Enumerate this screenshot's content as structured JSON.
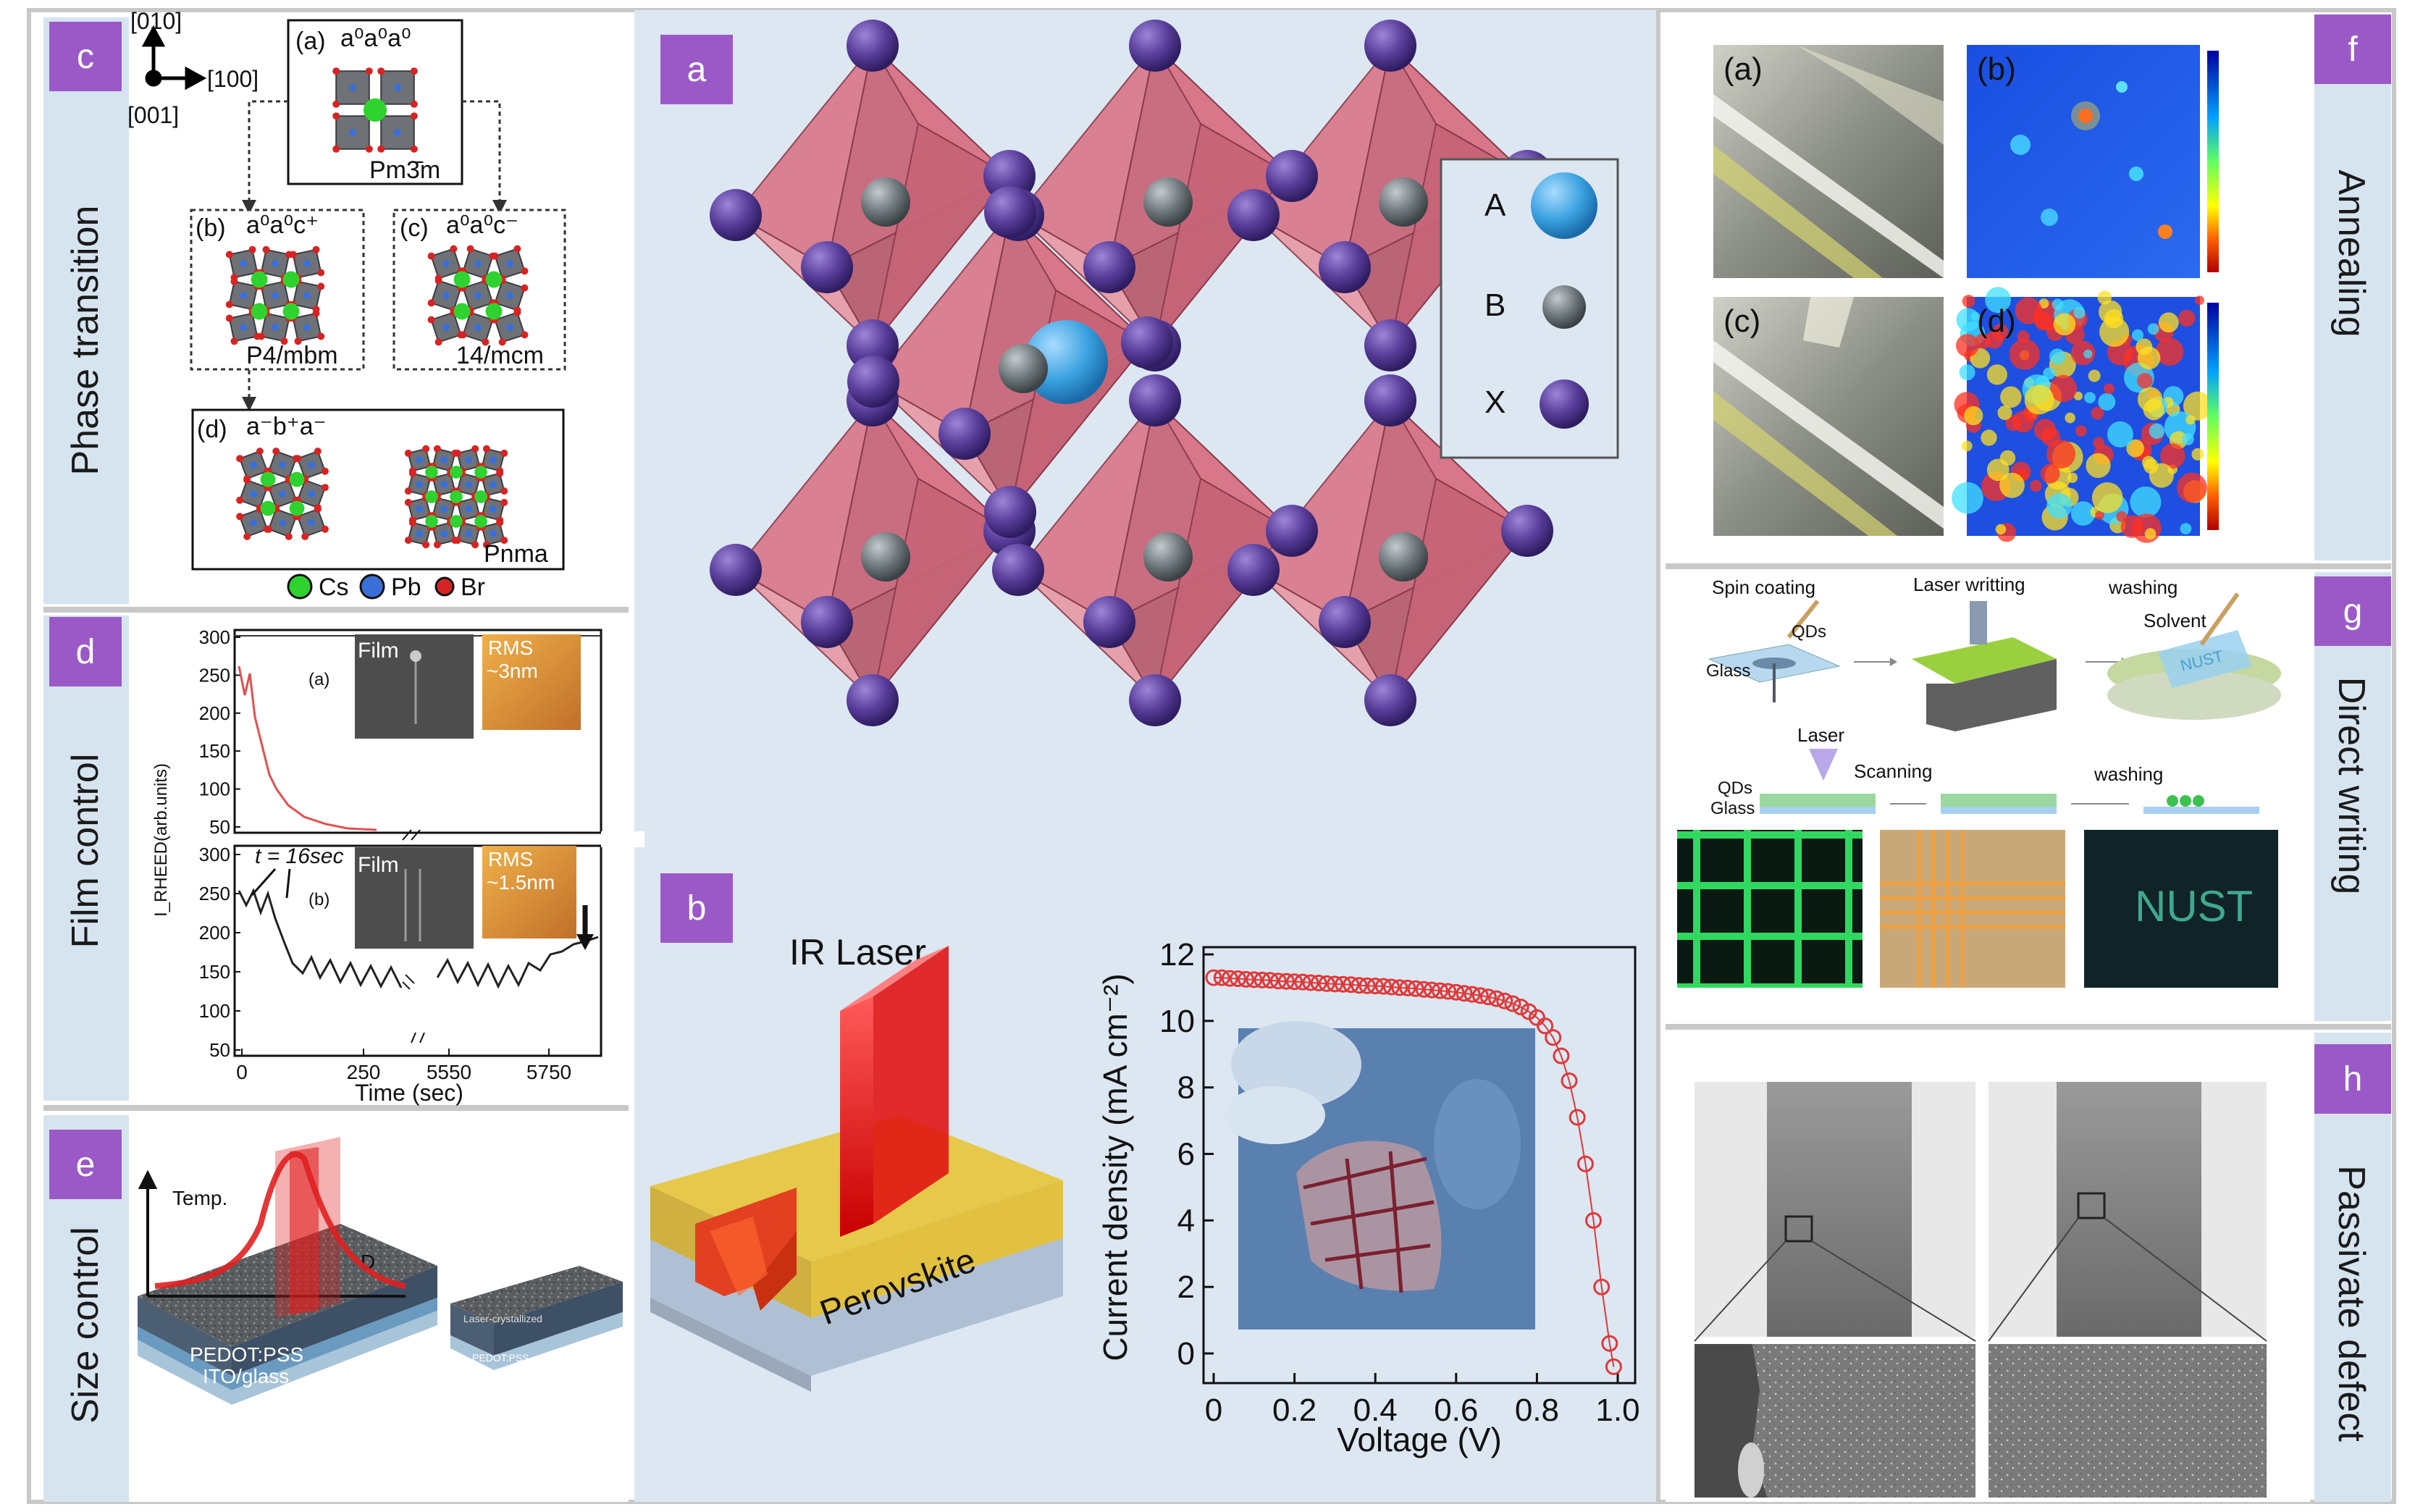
{
  "colors": {
    "tag_purple": "#9b59c8",
    "panel_blue": "#dbe6f1",
    "octa_pink": "#d97a8a",
    "x_atom": "#5b3f9c",
    "a_atom": "#3aa1e0",
    "b_atom": "#6b7478",
    "cs_green": "#2fd32f",
    "pb_blue": "#3b6fd8",
    "br_red": "#d62424",
    "curve_red": "#e03838"
  },
  "tags": {
    "a": "a",
    "b": "b",
    "c": "c",
    "d": "d",
    "e": "e",
    "f": "f",
    "g": "g",
    "h": "h"
  },
  "sections": {
    "c": "Phase transition",
    "d": "Film control",
    "e": "Size control",
    "f": "Annealing",
    "g": "Direct writing",
    "h": "Passivate defect"
  },
  "phase": {
    "axis_010": "[010]",
    "axis_100": "[100]",
    "axis_001": "[001]",
    "box_a_label": "(a)",
    "box_a_tilt": "a⁰a⁰a⁰",
    "box_a_group": "Pm3̄m",
    "box_b_label": "(b)",
    "box_b_tilt": "a⁰a⁰c⁺",
    "box_b_group": "P4/mbm",
    "box_c_label": "(c)",
    "box_c_tilt": "a⁰a⁰c⁻",
    "box_c_group": "14/mcm",
    "box_d_label": "(d)",
    "box_d_tilt": "a⁻b⁺a⁻",
    "box_d_group": "Pnma",
    "legend_cs": "Cs",
    "legend_pb": "Pb",
    "legend_br": "Br"
  },
  "structure_legend": {
    "a": "A",
    "b": "B",
    "x": "X"
  },
  "film": {
    "ylabel": "I_RHEED(arb.units)",
    "xlabel": "Time (sec)",
    "top_y_ticks": [
      "300",
      "250",
      "200",
      "150",
      "100",
      "50"
    ],
    "bot_y_ticks": [
      "300",
      "250",
      "200",
      "150",
      "100",
      "50"
    ],
    "x_ticks": [
      "0",
      "250",
      "5550",
      "5750"
    ],
    "label_a": "(a)",
    "label_b": "(b)",
    "film_a": "Film",
    "film_b": "Film",
    "rms_a_1": "RMS",
    "rms_a_2": "~3nm",
    "rms_b_1": "RMS",
    "rms_b_2": "~1.5nm",
    "t_label": "t = 16sec"
  },
  "size": {
    "temp": "Temp.",
    "d": "D",
    "pedot": "PEDOT:PSS",
    "ito": "ITO/glass",
    "laser_cryst": "Laser-crystallized",
    "pedot_small": "PEDOT:PSS"
  },
  "laser": {
    "ir_laser": "IR Laser",
    "perovskite": "Perovskite"
  },
  "chart_data": {
    "type": "scatter",
    "xlabel": "Voltage (V)",
    "ylabel": "Current density (mA cm⁻²)",
    "xlim": [
      0,
      1.0
    ],
    "ylim": [
      -0.5,
      12
    ],
    "x_ticks": [
      "0",
      "0.2",
      "0.4",
      "0.6",
      "0.8",
      "1.0"
    ],
    "y_ticks": [
      "0",
      "2",
      "4",
      "6",
      "8",
      "10",
      "12"
    ],
    "x": [
      0.0,
      0.02,
      0.04,
      0.06,
      0.08,
      0.1,
      0.12,
      0.14,
      0.16,
      0.18,
      0.2,
      0.22,
      0.24,
      0.26,
      0.28,
      0.3,
      0.32,
      0.34,
      0.36,
      0.38,
      0.4,
      0.42,
      0.44,
      0.46,
      0.48,
      0.5,
      0.52,
      0.54,
      0.56,
      0.58,
      0.6,
      0.62,
      0.64,
      0.66,
      0.68,
      0.7,
      0.72,
      0.74,
      0.76,
      0.78,
      0.8,
      0.82,
      0.84,
      0.86,
      0.88,
      0.9,
      0.92,
      0.94,
      0.96,
      0.98,
      0.99
    ],
    "y": [
      11.3,
      11.3,
      11.28,
      11.27,
      11.25,
      11.24,
      11.23,
      11.22,
      11.2,
      11.19,
      11.18,
      11.17,
      11.15,
      11.14,
      11.12,
      11.11,
      11.1,
      11.09,
      11.07,
      11.06,
      11.05,
      11.04,
      11.02,
      11.0,
      10.99,
      10.97,
      10.95,
      10.93,
      10.91,
      10.89,
      10.86,
      10.83,
      10.8,
      10.76,
      10.72,
      10.67,
      10.6,
      10.52,
      10.42,
      10.28,
      10.1,
      9.85,
      9.5,
      8.95,
      8.2,
      7.1,
      5.7,
      4.0,
      2.0,
      0.3,
      -0.4
    ]
  },
  "annealing": {
    "a": "(a)",
    "b": "(b)",
    "c": "(c)",
    "d": "(d)"
  },
  "direct": {
    "spin": "Spin coating",
    "laser_writing": "Laser writting",
    "washing1": "washing",
    "qds": "QDs",
    "glass": "Glass",
    "solvent": "Solvent",
    "laser": "Laser",
    "scanning": "Scanning",
    "washing2": "washing",
    "qds2": "QDs",
    "glass2": "Glass",
    "nust": "NUST",
    "nust_small": "NUST"
  }
}
